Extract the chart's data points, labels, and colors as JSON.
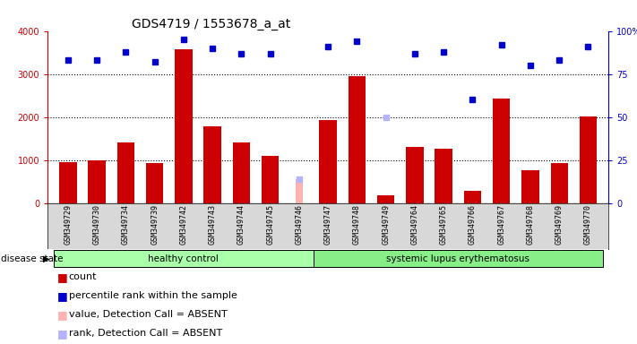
{
  "title": "GDS4719 / 1553678_a_at",
  "samples": [
    "GSM349729",
    "GSM349730",
    "GSM349734",
    "GSM349739",
    "GSM349742",
    "GSM349743",
    "GSM349744",
    "GSM349745",
    "GSM349746",
    "GSM349747",
    "GSM349748",
    "GSM349749",
    "GSM349764",
    "GSM349765",
    "GSM349766",
    "GSM349767",
    "GSM349768",
    "GSM349769",
    "GSM349770"
  ],
  "counts": [
    950,
    1000,
    1400,
    920,
    3580,
    1780,
    1400,
    1100,
    0,
    1920,
    2950,
    175,
    1300,
    1270,
    290,
    2430,
    770,
    920,
    2010
  ],
  "percentiles": [
    83,
    83,
    88,
    82,
    95,
    90,
    87,
    87,
    null,
    91,
    94,
    null,
    87,
    88,
    60,
    92,
    80,
    83,
    91
  ],
  "absent_value": [
    null,
    null,
    null,
    null,
    null,
    null,
    null,
    null,
    550,
    null,
    null,
    null,
    null,
    null,
    null,
    null,
    null,
    null,
    null
  ],
  "absent_rank_dot": [
    null,
    null,
    null,
    null,
    null,
    null,
    null,
    null,
    14,
    null,
    null,
    null,
    null,
    null,
    null,
    null,
    null,
    null,
    null
  ],
  "absent_pct_dot": [
    null,
    null,
    null,
    null,
    null,
    null,
    null,
    null,
    null,
    null,
    null,
    50,
    null,
    null,
    null,
    null,
    null,
    null,
    null
  ],
  "group_healthy_count": 9,
  "group_labels": [
    "healthy control",
    "systemic lupus erythematosus"
  ],
  "bar_color": "#cc0000",
  "dot_color": "#0000cc",
  "absent_value_color": "#ffb3b3",
  "absent_rank_color": "#b3b3ff",
  "ylim_left": [
    0,
    4000
  ],
  "ylim_right": [
    0,
    100
  ],
  "yticks_left": [
    0,
    1000,
    2000,
    3000,
    4000
  ],
  "yticks_right": [
    0,
    25,
    50,
    75,
    100
  ],
  "ytick_labels_right": [
    "0",
    "25",
    "50",
    "75",
    "100%"
  ],
  "sample_bg_color": "#d8d8d8",
  "healthy_bg": "#aaffaa",
  "lupus_bg": "#88ee88",
  "plot_bg": "#ffffff",
  "legend_items": [
    {
      "color": "#cc0000",
      "label": "count"
    },
    {
      "color": "#0000cc",
      "label": "percentile rank within the sample"
    },
    {
      "color": "#ffb3b3",
      "label": "value, Detection Call = ABSENT"
    },
    {
      "color": "#b3b3ff",
      "label": "rank, Detection Call = ABSENT"
    }
  ],
  "disease_state_label": "disease state",
  "fontsize_title": 10,
  "fontsize_ticks": 7,
  "fontsize_legend": 8
}
